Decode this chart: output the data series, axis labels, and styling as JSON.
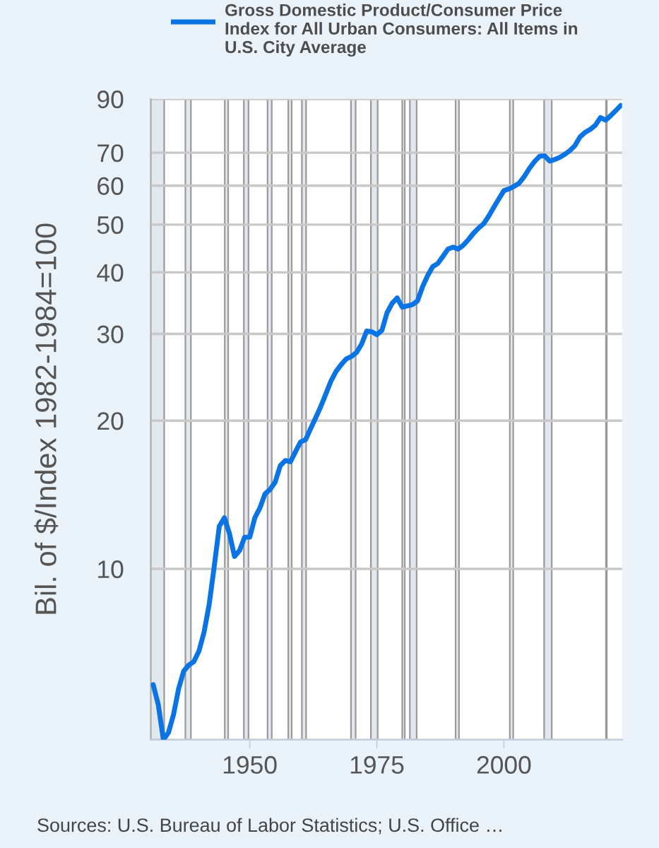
{
  "chart_data": {
    "type": "line",
    "ylabel": "Bil. of $/Index 1982-1984=100",
    "annotations": [
      "Sources: U.S. Bureau of Labor Statistics; U.S. Office …"
    ],
    "x": [
      "1931",
      "1932",
      "1933",
      "1934",
      "1935",
      "1936",
      "1937",
      "1938",
      "1939",
      "1940",
      "1941",
      "1942",
      "1943",
      "1944",
      "1945",
      "1946",
      "1947",
      "1948",
      "1949",
      "1950",
      "1951",
      "1952",
      "1953",
      "1954",
      "1955",
      "1956",
      "1957",
      "1958",
      "1959",
      "1960",
      "1961",
      "1962",
      "1963",
      "1964",
      "1965",
      "1966",
      "1967",
      "1968",
      "1969",
      "1970",
      "1971",
      "1972",
      "1973",
      "1974",
      "1975",
      "1976",
      "1977",
      "1978",
      "1979",
      "1980",
      "1981",
      "1982",
      "1983",
      "1984",
      "1985",
      "1986",
      "1987",
      "1988",
      "1989",
      "1990",
      "1991",
      "1992",
      "1993",
      "1994",
      "1995",
      "1996",
      "1997",
      "1998",
      "1999",
      "2000",
      "2001",
      "2002",
      "2003",
      "2004",
      "2005",
      "2006",
      "2007",
      "2008",
      "2009",
      "2010",
      "2011",
      "2012",
      "2013",
      "2014",
      "2015",
      "2016",
      "2017",
      "2018",
      "2019",
      "2020",
      "2021",
      "2022",
      "2023"
    ],
    "series": [
      {
        "name": "Gross Domestic Product/Consumer Price Index for All Urban Consumers: All Items in U.S. City Average",
        "color": "#0b74e5",
        "values": [
          5.82,
          5.3,
          4.5,
          4.65,
          5.06,
          5.71,
          6.2,
          6.38,
          6.48,
          6.81,
          7.43,
          8.45,
          10.1,
          12.2,
          12.7,
          11.8,
          10.6,
          10.9,
          11.6,
          11.6,
          12.7,
          13.3,
          14.2,
          14.5,
          15.0,
          16.2,
          16.6,
          16.5,
          17.3,
          18.1,
          18.3,
          19.3,
          20.3,
          21.4,
          22.7,
          24.1,
          25.2,
          26.0,
          26.7,
          27.0,
          27.5,
          28.6,
          30.4,
          30.3,
          29.9,
          30.5,
          33.1,
          34.6,
          35.5,
          34.0,
          34.2,
          34.4,
          35.0,
          37.4,
          39.4,
          41.1,
          41.7,
          43.1,
          44.6,
          45.0,
          44.6,
          45.4,
          46.6,
          48.0,
          49.2,
          50.2,
          52.0,
          54.2,
          56.4,
          58.6,
          59.1,
          59.8,
          60.7,
          62.6,
          65.0,
          67.1,
          68.8,
          69.0,
          67.3,
          67.8,
          68.5,
          69.5,
          70.7,
          72.4,
          75.4,
          77.0,
          78.1,
          79.6,
          82.5,
          81.5,
          83.2,
          85.2,
          87.3
        ]
      }
    ],
    "xlim": [
      "1930-07",
      "2023-04"
    ],
    "xticks": [
      "1950",
      "1975",
      "2000"
    ],
    "ylim": [
      4.5,
      90
    ],
    "yticks": [
      10,
      20,
      30,
      40,
      50,
      60,
      70,
      90
    ],
    "log": true,
    "grid": "y",
    "legend": "top",
    "line_style": "solid",
    "bands": [
      {
        "axis": "x",
        "from": "1930-07",
        "to": "1933-03",
        "color": "#e3e8ee"
      },
      {
        "axis": "x",
        "from": "1937-05",
        "to": "1938-06",
        "color": "#e3e8ee"
      },
      {
        "axis": "x",
        "from": "1945-02",
        "to": "1945-10",
        "color": "#e3e8ee"
      },
      {
        "axis": "x",
        "from": "1948-11",
        "to": "1949-10",
        "color": "#e3e8ee"
      },
      {
        "axis": "x",
        "from": "1953-07",
        "to": "1954-05",
        "color": "#e3e8ee"
      },
      {
        "axis": "x",
        "from": "1957-08",
        "to": "1958-04",
        "color": "#e3e8ee"
      },
      {
        "axis": "x",
        "from": "1960-04",
        "to": "1961-02",
        "color": "#e3e8ee"
      },
      {
        "axis": "x",
        "from": "1969-12",
        "to": "1970-11",
        "color": "#e3e8ee"
      },
      {
        "axis": "x",
        "from": "1973-11",
        "to": "1975-03",
        "color": "#e3e8ee"
      },
      {
        "axis": "x",
        "from": "1980-01",
        "to": "1980-07",
        "color": "#e3e8ee"
      },
      {
        "axis": "x",
        "from": "1981-07",
        "to": "1982-11",
        "color": "#e3e8ee"
      },
      {
        "axis": "x",
        "from": "1990-07",
        "to": "1991-03",
        "color": "#e3e8ee"
      },
      {
        "axis": "x",
        "from": "2001-03",
        "to": "2001-11",
        "color": "#e3e8ee"
      },
      {
        "axis": "x",
        "from": "2007-12",
        "to": "2009-06",
        "color": "#e3e8ee"
      },
      {
        "axis": "x",
        "from": "2020-02",
        "to": "2020-04",
        "color": "#e3e8ee"
      }
    ]
  }
}
